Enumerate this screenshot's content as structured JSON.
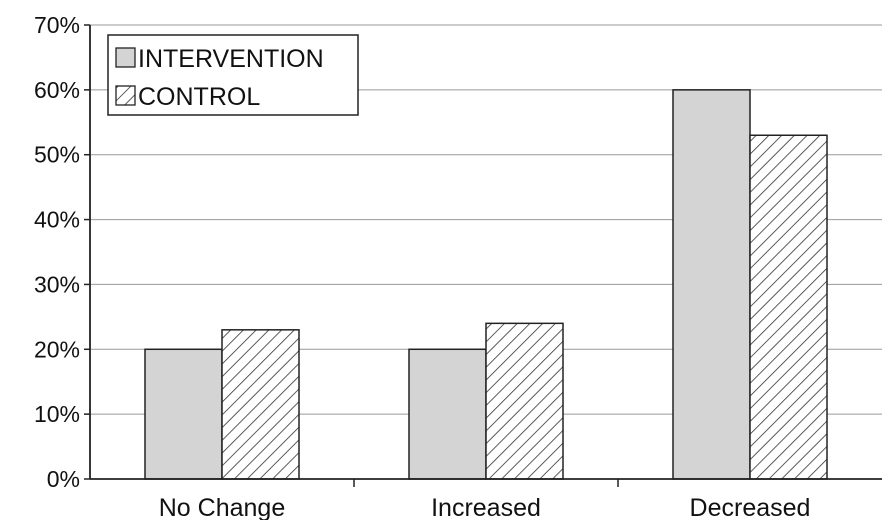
{
  "chart_data": {
    "type": "bar",
    "title": "",
    "xlabel": "",
    "ylabel": "",
    "categories": [
      "No Change",
      "Increased",
      "Decreased"
    ],
    "series": [
      {
        "name": "INTERVENTION",
        "values": [
          20,
          20,
          60
        ],
        "fill": "solid-gray",
        "color": "#d4d4d4"
      },
      {
        "name": "CONTROL",
        "values": [
          23,
          24,
          53
        ],
        "fill": "diagonal-hatch",
        "color": "#ffffff"
      }
    ],
    "ylim": [
      0,
      70
    ],
    "y_ticks": [
      0,
      10,
      20,
      30,
      40,
      50,
      60,
      70
    ],
    "y_tick_format": "{v}%",
    "grid": true,
    "legend_position": "top-left",
    "bar_outline_color": "#222222",
    "grid_color": "#999999"
  }
}
